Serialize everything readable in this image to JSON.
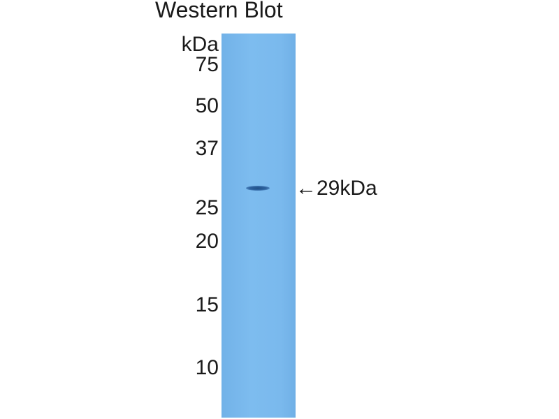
{
  "title": "Western Blot",
  "unit_label": "kDa",
  "markers": [
    "75",
    "50",
    "37",
    "25",
    "20",
    "15",
    "10"
  ],
  "band_label": "←29kDa",
  "colors": {
    "membrane": "#7ab9ed",
    "band": "#2e63a0"
  }
}
